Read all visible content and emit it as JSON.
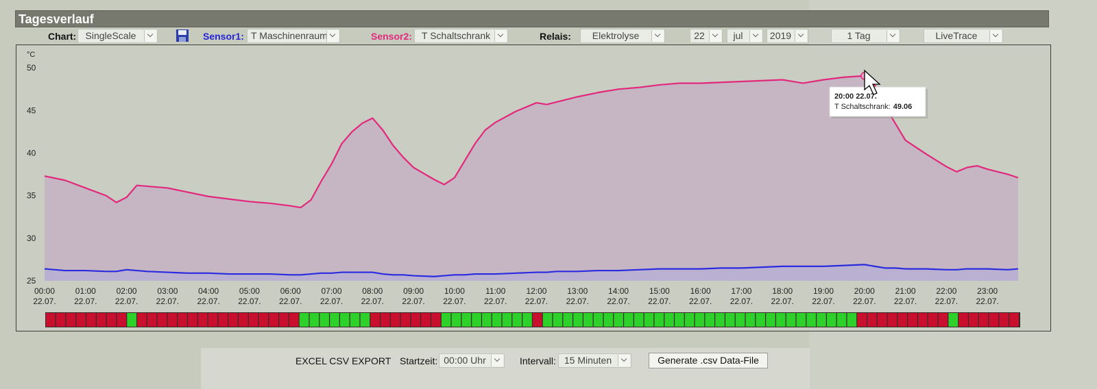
{
  "header": {
    "title": "Tagesverlauf"
  },
  "controls": {
    "chart": {
      "label": "Chart:",
      "value": "SingleScale"
    },
    "sensor1": {
      "label": "Sensor1:"
    },
    "sensor2": {
      "label": "Sensor2:"
    },
    "relay": {
      "label": "Relais:",
      "value": "Elektrolyse"
    },
    "day": "22",
    "month": "jul",
    "year": "2019",
    "range": "1 Tag",
    "mode": "LiveTrace"
  },
  "chart_data": {
    "type": "line",
    "y_unit": "°C",
    "x": [
      0,
      0.5,
      1,
      1.5,
      1.75,
      2,
      2.25,
      2.5,
      3,
      3.5,
      4,
      4.5,
      5,
      5.5,
      6,
      6.25,
      6.5,
      6.75,
      7,
      7.25,
      7.5,
      7.75,
      8,
      8.25,
      8.5,
      8.75,
      9,
      9.5,
      9.75,
      10,
      10.25,
      10.5,
      10.75,
      11,
      11.5,
      12,
      12.25,
      12.5,
      13,
      13.5,
      14,
      14.5,
      15,
      15.5,
      16,
      16.5,
      17,
      17.5,
      18,
      18.5,
      19,
      19.5,
      20,
      20.25,
      20.5,
      20.75,
      21,
      21.5,
      22,
      22.25,
      22.5,
      22.75,
      23,
      23.5,
      23.75
    ],
    "series": [
      {
        "name": "T Maschinenraum",
        "color": "#2a2ae0",
        "area_color": "#b9b0d2",
        "values": [
          26.4,
          26.2,
          26.2,
          26.1,
          26.1,
          26.3,
          26.2,
          26.1,
          26.0,
          25.9,
          25.9,
          25.8,
          25.8,
          25.8,
          25.7,
          25.7,
          25.8,
          25.9,
          25.9,
          26.0,
          26.0,
          26.0,
          26.0,
          25.8,
          25.7,
          25.7,
          25.6,
          25.5,
          25.6,
          25.7,
          25.7,
          25.8,
          25.8,
          25.8,
          25.9,
          26.0,
          26.0,
          26.1,
          26.1,
          26.2,
          26.2,
          26.3,
          26.4,
          26.4,
          26.4,
          26.5,
          26.5,
          26.6,
          26.7,
          26.7,
          26.7,
          26.8,
          26.9,
          26.7,
          26.5,
          26.5,
          26.4,
          26.4,
          26.3,
          26.3,
          26.4,
          26.4,
          26.4,
          26.3,
          26.4
        ]
      },
      {
        "name": "T Schaltschrank",
        "color": "#e2287c",
        "area_color": "#c6b5c2",
        "values": [
          37.3,
          36.8,
          35.9,
          35.0,
          34.2,
          34.8,
          36.2,
          36.1,
          35.9,
          35.4,
          34.9,
          34.6,
          34.3,
          34.1,
          33.8,
          33.6,
          34.5,
          36.7,
          38.7,
          41.1,
          42.5,
          43.5,
          44.1,
          42.7,
          40.9,
          39.5,
          38.3,
          36.9,
          36.3,
          37.1,
          39.1,
          41.1,
          42.7,
          43.6,
          44.9,
          45.9,
          45.7,
          46.0,
          46.6,
          47.1,
          47.5,
          47.7,
          48.0,
          48.2,
          48.2,
          48.3,
          48.4,
          48.5,
          48.6,
          48.2,
          48.6,
          48.9,
          49.06,
          48.0,
          45.5,
          43.5,
          41.5,
          39.9,
          38.4,
          37.8,
          38.3,
          38.5,
          38.1,
          37.5,
          37.1
        ]
      }
    ],
    "xlim": [
      0,
      23.75
    ],
    "xticks": [
      {
        "value": 0,
        "label": "00:00 22.07."
      },
      {
        "value": 1,
        "label": "01:00 22.07."
      },
      {
        "value": 2,
        "label": "02:00 22.07."
      },
      {
        "value": 3,
        "label": "03:00 22.07."
      },
      {
        "value": 4,
        "label": "04:00 22.07."
      },
      {
        "value": 5,
        "label": "05:00 22.07."
      },
      {
        "value": 6,
        "label": "06:00 22.07."
      },
      {
        "value": 7,
        "label": "07:00 22.07."
      },
      {
        "value": 8,
        "label": "08:00 22.07."
      },
      {
        "value": 9,
        "label": "09:00 22.07."
      },
      {
        "value": 10,
        "label": "10:00 22.07."
      },
      {
        "value": 11,
        "label": "11:00 22.07."
      },
      {
        "value": 12,
        "label": "12:00 22.07."
      },
      {
        "value": 13,
        "label": "13:00 22.07."
      },
      {
        "value": 14,
        "label": "14:00 22.07."
      },
      {
        "value": 15,
        "label": "15:00 22.07."
      },
      {
        "value": 16,
        "label": "16:00 22.07."
      },
      {
        "value": 17,
        "label": "17:00 22.07."
      },
      {
        "value": 18,
        "label": "18:00 22.07."
      },
      {
        "value": 19,
        "label": "19:00 22.07."
      },
      {
        "value": 20,
        "label": "20:00 22.07."
      },
      {
        "value": 21,
        "label": "21:00 22.07."
      },
      {
        "value": 22,
        "label": "22:00 22.07."
      },
      {
        "value": 23,
        "label": "23:00 22.07."
      }
    ],
    "ylim": [
      25,
      52.7
    ],
    "yticks": [
      25,
      30,
      35,
      40,
      45,
      50
    ],
    "grid": false,
    "tooltip": {
      "series_label": "T Schaltschrank:"
    }
  },
  "relay": {
    "on_color": "#2ed12a",
    "off_color": "#c8102e",
    "states": [
      0,
      0,
      0,
      0,
      0,
      0,
      0,
      0,
      1,
      0,
      0,
      0,
      0,
      0,
      0,
      0,
      0,
      0,
      0,
      0,
      0,
      0,
      0,
      0,
      0,
      1,
      1,
      1,
      1,
      1,
      1,
      1,
      0,
      0,
      0,
      0,
      0,
      0,
      0,
      1,
      1,
      1,
      1,
      1,
      1,
      1,
      1,
      1,
      0,
      1,
      1,
      1,
      1,
      1,
      1,
      1,
      1,
      1,
      1,
      1,
      1,
      1,
      1,
      1,
      1,
      1,
      1,
      1,
      1,
      1,
      1,
      1,
      1,
      1,
      1,
      1,
      1,
      1,
      1,
      1,
      0,
      0,
      0,
      0,
      0,
      0,
      0,
      0,
      0,
      1,
      0,
      0,
      0,
      0,
      0,
      0
    ]
  },
  "export": {
    "title": "EXCEL CSV EXPORT",
    "start_label": "Startzeit:",
    "start_value": "00:00 Uhr",
    "interval_label": "Intervall:",
    "interval_value": "15 Minuten",
    "button": "Generate .csv Data-File"
  }
}
